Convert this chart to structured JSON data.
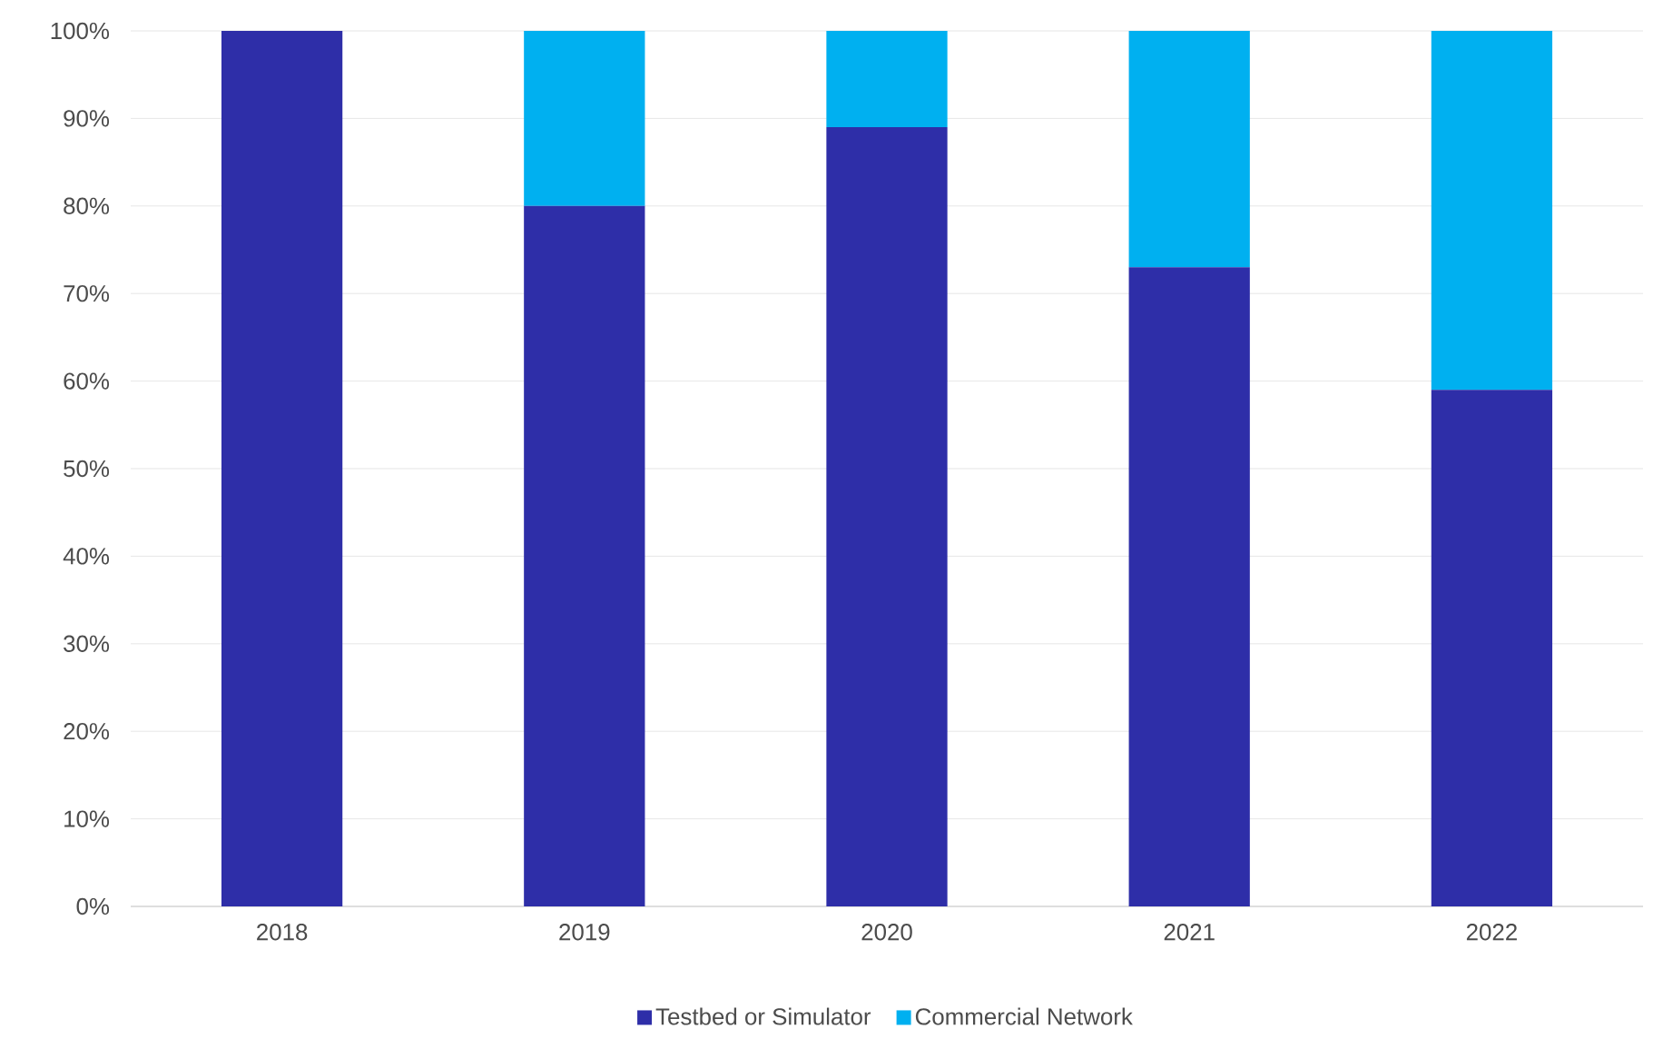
{
  "chart_data": {
    "type": "bar",
    "stacked": true,
    "categories": [
      "2018",
      "2019",
      "2020",
      "2021",
      "2022"
    ],
    "series": [
      {
        "name": "Testbed or Simulator",
        "color": "#2e2ea8",
        "values": [
          100,
          80,
          89,
          73,
          59
        ]
      },
      {
        "name": "Commercial Network",
        "color": "#00b0f0",
        "values": [
          0,
          20,
          11,
          27,
          41
        ]
      }
    ],
    "ylim": [
      0,
      100
    ],
    "yticks": [
      {
        "value": 0,
        "label": "0%"
      },
      {
        "value": 10,
        "label": "10%"
      },
      {
        "value": 20,
        "label": "20%"
      },
      {
        "value": 30,
        "label": "30%"
      },
      {
        "value": 40,
        "label": "40%"
      },
      {
        "value": 50,
        "label": "50%"
      },
      {
        "value": 60,
        "label": "60%"
      },
      {
        "value": 70,
        "label": "70%"
      },
      {
        "value": 80,
        "label": "80%"
      },
      {
        "value": 90,
        "label": "90%"
      },
      {
        "value": 100,
        "label": "100%"
      }
    ],
    "grid": "y",
    "legend": "bottom"
  }
}
